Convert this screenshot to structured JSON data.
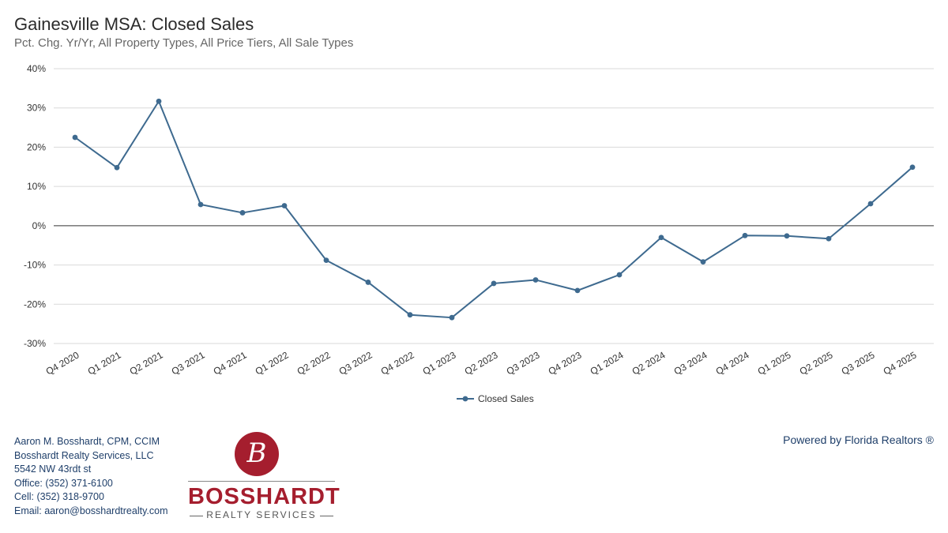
{
  "chart_data": {
    "type": "line",
    "title": "Gainesville MSA: Closed Sales",
    "subtitle": "Pct. Chg. Yr/Yr, All Property Types, All Price Tiers, All Sale Types",
    "categories": [
      "Q4 2020",
      "Q1 2021",
      "Q2 2021",
      "Q3 2021",
      "Q4 2021",
      "Q1 2022",
      "Q2 2022",
      "Q3 2022",
      "Q4 2022",
      "Q1 2023",
      "Q2 2023",
      "Q3 2023",
      "Q4 2023",
      "Q1 2024",
      "Q2 2024",
      "Q3 2024",
      "Q4 2024",
      "Q1 2025",
      "Q2 2025",
      "Q3 2025",
      "Q4 2025"
    ],
    "series": [
      {
        "name": "Closed Sales",
        "values": [
          22.5,
          14.8,
          31.7,
          5.4,
          3.3,
          5.1,
          -8.8,
          -14.4,
          -22.7,
          -23.4,
          -14.7,
          -13.8,
          -16.5,
          -12.5,
          -3.0,
          -9.2,
          -2.5,
          -2.6,
          -3.3,
          5.6,
          14.9
        ]
      }
    ],
    "ylim": [
      -30,
      40
    ],
    "yticks": [
      40,
      30,
      20,
      10,
      0,
      -10,
      -20,
      -30
    ],
    "ytick_labels": [
      "40%",
      "30%",
      "20%",
      "10%",
      "0%",
      "-10%",
      "-20%",
      "-30%"
    ],
    "grid": true,
    "legend": "bottom-center",
    "colors": {
      "line": "#3e6a8f",
      "grid": "#d9d9d9",
      "zero": "#333333"
    }
  },
  "footer": {
    "contact_lines": [
      "Aaron M. Bosshardt, CPM, CCIM",
      "Bosshardt Realty Services, LLC",
      "5542 NW 43rdt st",
      "Office: (352) 371-6100",
      "Cell: (352) 318-9700",
      "Email: aaron@bosshardtrealty.com"
    ],
    "powered_by": "Powered by Florida Realtors ®",
    "logo": {
      "mark": "B",
      "name": "BOSSHARDT",
      "tagline": "REALTY SERVICES"
    }
  }
}
